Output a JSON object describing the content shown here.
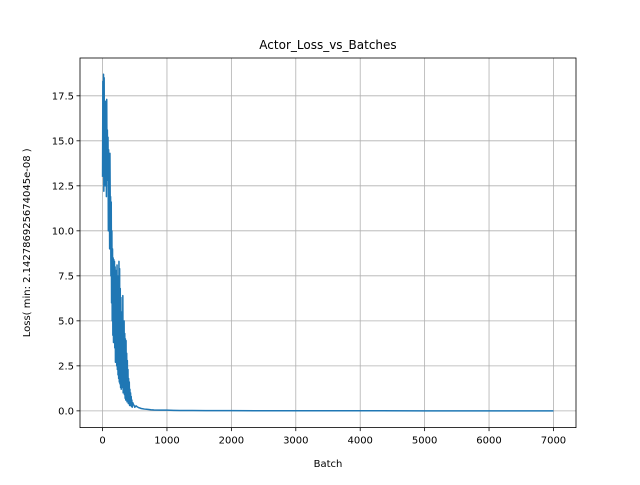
{
  "chart_data": {
    "type": "line",
    "title": "Actor_Loss_vs_Batches",
    "xlabel": "Batch",
    "ylabel": "Loss( min: 2.142786925674045e-08 )",
    "xlim": [
      -350,
      7350
    ],
    "ylim": [
      -0.93,
      19.6
    ],
    "xticks": [
      0,
      1000,
      2000,
      3000,
      4000,
      5000,
      6000,
      7000
    ],
    "xtick_labels": [
      "0",
      "1000",
      "2000",
      "3000",
      "4000",
      "5000",
      "6000",
      "7000"
    ],
    "yticks": [
      0.0,
      2.5,
      5.0,
      7.5,
      10.0,
      12.5,
      15.0,
      17.5
    ],
    "ytick_labels": [
      "0.0",
      "2.5",
      "5.0",
      "7.5",
      "10.0",
      "12.5",
      "15.0",
      "17.5"
    ],
    "grid": true,
    "series_color": "#1f77b4",
    "series": [
      {
        "x": [
          0,
          5,
          10,
          15,
          20,
          25,
          30,
          35,
          40,
          45,
          50,
          55,
          60,
          65,
          70,
          75,
          80,
          85,
          90,
          95,
          100,
          105,
          110,
          115,
          120,
          125,
          130,
          135,
          140,
          145,
          150,
          155,
          160,
          165,
          170,
          175,
          180,
          185,
          190,
          195,
          200,
          205,
          210,
          215,
          220,
          225,
          230,
          235,
          240,
          245,
          250,
          255,
          260,
          265,
          270,
          275,
          280,
          285,
          290,
          295,
          300,
          305,
          310,
          315,
          320,
          325,
          330,
          335,
          340,
          345,
          350,
          355,
          360,
          365,
          370,
          375,
          380,
          385,
          390,
          395,
          400,
          405,
          410,
          415,
          420,
          425,
          430,
          435,
          440,
          445,
          450,
          455,
          460,
          470,
          480,
          490,
          500,
          520,
          540,
          560,
          580,
          600,
          650,
          700,
          750,
          800,
          900,
          1000,
          1100,
          1200,
          1400,
          1600,
          2000,
          3000,
          4000,
          5000,
          6000,
          7000
        ],
        "y": [
          13.0,
          18.3,
          15.0,
          18.7,
          12.2,
          18.5,
          13.5,
          17.0,
          12.5,
          17.2,
          14.0,
          16.0,
          11.9,
          17.3,
          13.0,
          15.6,
          12.8,
          15.2,
          10.0,
          14.5,
          12.0,
          14.2,
          9.0,
          14.3,
          11.0,
          11.9,
          7.5,
          11.6,
          6.0,
          10.0,
          5.0,
          9.0,
          4.2,
          8.5,
          3.8,
          8.4,
          4.0,
          8.3,
          3.5,
          8.0,
          2.7,
          7.8,
          3.0,
          7.6,
          2.5,
          8.1,
          2.3,
          7.5,
          2.0,
          7.0,
          1.8,
          8.3,
          1.6,
          7.9,
          1.5,
          6.8,
          1.3,
          6.3,
          1.2,
          5.3,
          1.4,
          5.5,
          1.3,
          6.4,
          1.0,
          4.8,
          1.1,
          5.0,
          0.9,
          4.3,
          0.7,
          4.0,
          0.6,
          3.9,
          0.6,
          3.2,
          0.5,
          2.8,
          0.5,
          2.3,
          0.4,
          1.8,
          0.4,
          1.6,
          0.3,
          1.2,
          0.3,
          1.0,
          0.3,
          0.8,
          0.25,
          0.6,
          0.2,
          0.45,
          0.35,
          0.3,
          0.2,
          0.28,
          0.22,
          0.18,
          0.16,
          0.13,
          0.1,
          0.08,
          0.06,
          0.05,
          0.04,
          0.04,
          0.03,
          0.02,
          0.02,
          0.01,
          0.01,
          0.005,
          0.003,
          0.002,
          0.001,
          0.0
        ]
      }
    ]
  }
}
